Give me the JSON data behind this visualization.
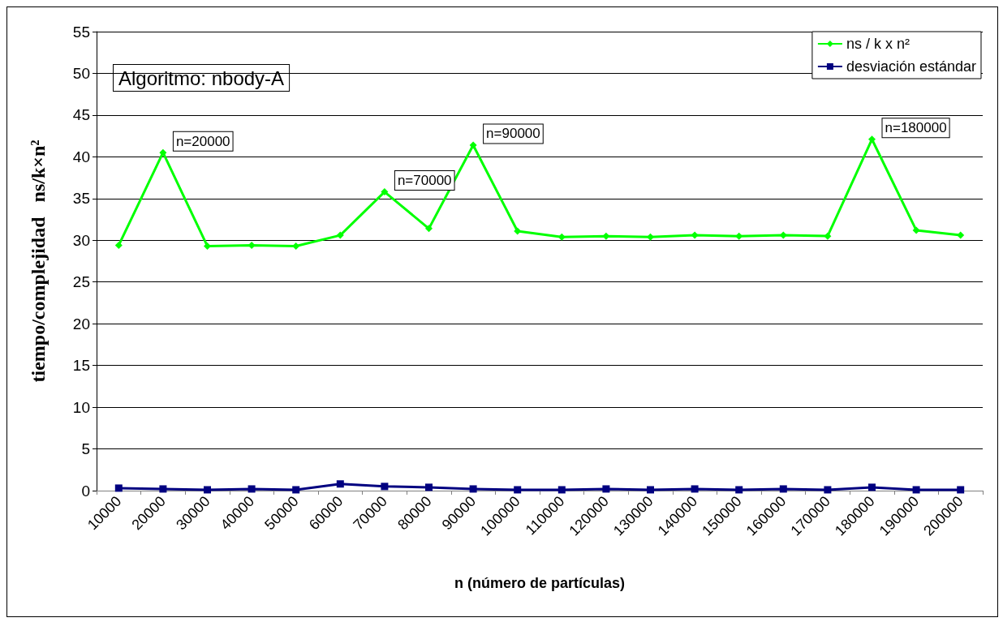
{
  "chart_data": {
    "type": "line",
    "xlabel": "n (número de partículas)",
    "ylabel": "tiempo/complejidad   ns/k×n²",
    "categories": [
      "10000",
      "20000",
      "30000",
      "40000",
      "50000",
      "60000",
      "70000",
      "80000",
      "90000",
      "100000",
      "110000",
      "120000",
      "130000",
      "140000",
      "150000",
      "160000",
      "170000",
      "180000",
      "190000",
      "200000"
    ],
    "series": [
      {
        "name": "ns / k x n²",
        "color": "#00ff00",
        "marker": "diamond",
        "values": [
          29.4,
          40.5,
          29.3,
          29.4,
          29.3,
          30.6,
          35.8,
          31.4,
          41.4,
          31.1,
          30.4,
          30.5,
          30.4,
          30.6,
          30.5,
          30.6,
          30.5,
          42.1,
          31.2,
          30.6
        ]
      },
      {
        "name": "desviación estándar",
        "color": "#000080",
        "marker": "square",
        "values": [
          0.3,
          0.2,
          0.1,
          0.2,
          0.1,
          0.8,
          0.5,
          0.4,
          0.2,
          0.1,
          0.1,
          0.2,
          0.1,
          0.2,
          0.1,
          0.2,
          0.1,
          0.4,
          0.1,
          0.1
        ]
      }
    ],
    "ylim": [
      0,
      55
    ],
    "yticks": [
      0,
      5,
      10,
      15,
      20,
      25,
      30,
      35,
      40,
      45,
      50,
      55
    ],
    "grid": "y",
    "legend": "top right",
    "annotations": [
      "Algoritmo: nbody-A",
      {
        "text": "n=20000",
        "x": "20000",
        "y": 40.5
      },
      {
        "text": "n=70000",
        "x": "70000",
        "y": 35.8
      },
      {
        "text": "n=90000",
        "x": "90000",
        "y": 41.4
      },
      {
        "text": "n=180000",
        "x": "180000",
        "y": 42.1
      }
    ]
  }
}
